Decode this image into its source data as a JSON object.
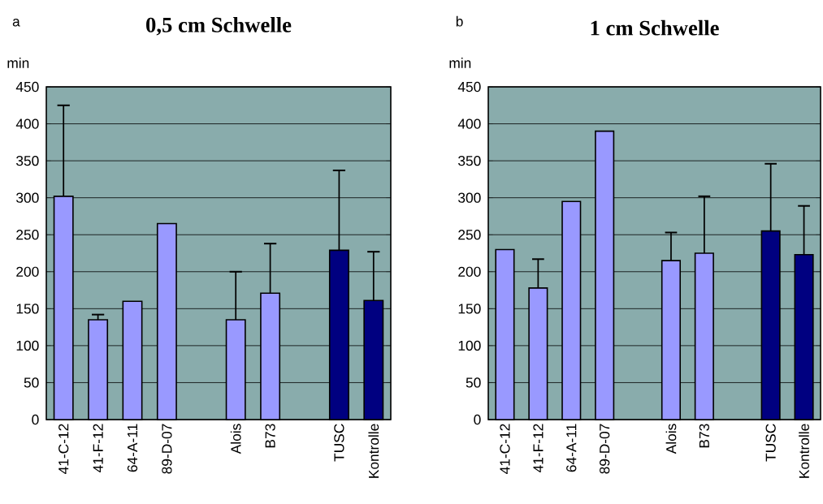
{
  "chart_data": [
    {
      "type": "bar",
      "title": "0,5 cm Schwelle",
      "ylabel": "min",
      "annotations": [
        "a"
      ],
      "categories": [
        "41-C-12",
        "41-F-12",
        "64-A-11",
        "89-D-07",
        null,
        "Alois",
        "B73",
        null,
        "TUSC",
        "Kontrolle"
      ],
      "values": [
        302,
        135,
        160,
        265,
        null,
        135,
        171,
        null,
        229,
        161
      ],
      "errors": [
        [
          302,
          425
        ],
        [
          135,
          142
        ],
        null,
        null,
        null,
        [
          135,
          200
        ],
        [
          171,
          238
        ],
        null,
        [
          229,
          337
        ],
        [
          161,
          227
        ]
      ],
      "colors": [
        "#9999ff",
        "#9999ff",
        "#9999ff",
        "#9999ff",
        "#9999ff",
        "#9999ff",
        "#9999ff",
        "#9999ff",
        "#000080",
        "#000080"
      ],
      "ylim": [
        0,
        450
      ],
      "yticks": [
        0,
        50,
        100,
        150,
        200,
        250,
        300,
        350,
        400,
        450
      ],
      "grid": "y"
    },
    {
      "type": "bar",
      "title": "1 cm Schwelle",
      "ylabel": "min",
      "annotations": [
        "b"
      ],
      "categories": [
        "41-C-12",
        "41-F-12",
        "64-A-11",
        "89-D-07",
        null,
        "Alois",
        "B73",
        null,
        "TUSC",
        "Kontrolle"
      ],
      "values": [
        230,
        178,
        295,
        390,
        null,
        215,
        225,
        null,
        255,
        223
      ],
      "errors": [
        null,
        [
          178,
          217
        ],
        null,
        null,
        null,
        [
          215,
          253
        ],
        [
          225,
          302
        ],
        null,
        [
          255,
          346
        ],
        [
          223,
          289
        ]
      ],
      "colors": [
        "#9999ff",
        "#9999ff",
        "#9999ff",
        "#9999ff",
        "#9999ff",
        "#9999ff",
        "#9999ff",
        "#9999ff",
        "#000080",
        "#000080"
      ],
      "ylim": [
        0,
        450
      ],
      "yticks": [
        0,
        50,
        100,
        150,
        200,
        250,
        300,
        350,
        400,
        450
      ],
      "grid": "y"
    }
  ]
}
